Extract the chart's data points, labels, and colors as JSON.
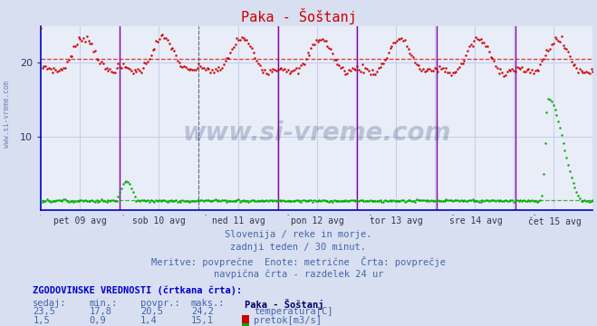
{
  "title": "Paka - Šoštanj",
  "title_color": "#cc0000",
  "bg_color": "#d8dff0",
  "plot_bg_color": "#e8edf8",
  "grid_color": "#c8d0e8",
  "xlabel_dates": [
    "pet 09 avg",
    "sob 10 avg",
    "ned 11 avg",
    "pon 12 avg",
    "tor 13 avg",
    "sre 14 avg",
    "čet 15 avg"
  ],
  "ylim": [
    0,
    25
  ],
  "yticks": [
    10,
    20
  ],
  "temp_color": "#cc0000",
  "flow_color": "#00aa00",
  "avg_temp": 20.5,
  "avg_flow": 1.4,
  "vline_color_solid": "#8800aa",
  "vline_color_dash": "#666688",
  "watermark_text": "www.si-vreme.com",
  "watermark_color": "#1a3060",
  "watermark_alpha": 0.22,
  "subtitle_lines": [
    "Slovenija / reke in morje.",
    "zadnji teden / 30 minut.",
    "Meritve: povprečne  Enote: metrične  Črta: povprečje",
    "navpična črta - razdelek 24 ur"
  ],
  "hist_title": "ZGODOVINSKE VREDNOSTI (črtkana črta):",
  "hist_cols": [
    "sedaj:",
    "min.:",
    "povpr.:",
    "maks.:"
  ],
  "hist_row1": [
    "23,5",
    "17,8",
    "20,5",
    "24,2"
  ],
  "hist_row2": [
    "1,5",
    "0,9",
    "1,4",
    "15,1"
  ],
  "legend_label1": "temperatura[C]",
  "legend_label2": "pretok[m3/s]",
  "legend_color1": "#cc0000",
  "legend_color2": "#00aa00",
  "station_label": "Paka - Šoštanj",
  "n_points": 336,
  "temp_min": 17.8,
  "temp_max": 24.2,
  "temp_avg": 20.5,
  "flow_min": 0.9,
  "flow_max": 15.1,
  "flow_avg": 1.4,
  "spine_color": "#0000cc",
  "text_color": "#4466aa",
  "hist_header_color": "#0000cc",
  "hist_val_color": "#4466aa"
}
